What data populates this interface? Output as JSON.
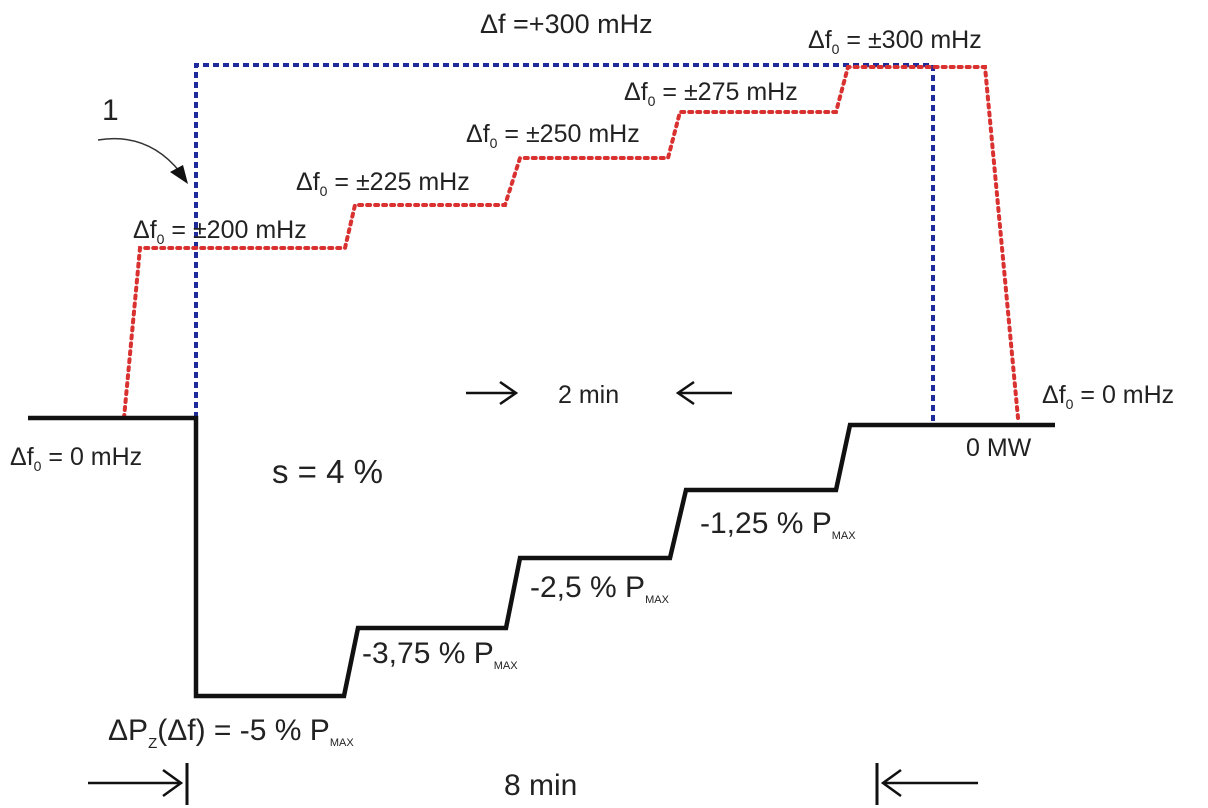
{
  "colors": {
    "power_line": "#111111",
    "frequency_line": "#d93030",
    "deviation_frame": "#1f2b9a",
    "text": "#222222"
  },
  "labels": {
    "top_deviation": "Δf =+300 mHz",
    "marker_number": "1",
    "f0_200": {
      "base": "Δf",
      "sub": "0",
      "rest": " = ±200 mHz"
    },
    "f0_225": {
      "base": "Δf",
      "sub": "0",
      "rest": " = ±225 mHz"
    },
    "f0_250": {
      "base": "Δf",
      "sub": "0",
      "rest": " = ±250 mHz"
    },
    "f0_275": {
      "base": "Δf",
      "sub": "0",
      "rest": " = ±275 mHz"
    },
    "f0_300": {
      "base": "Δf",
      "sub": "0",
      "rest": " = ±300 mHz"
    },
    "f0_zero_left": {
      "base": "Δf",
      "sub": "0",
      "rest": " = 0 mHz"
    },
    "f0_zero_right": {
      "base": "Δf",
      "sub": "0",
      "rest": " = 0 mHz"
    },
    "step_duration": "2 min",
    "total_duration": "8 min",
    "droop": "s = 4 %",
    "zero_power": "0 MW",
    "p_375": {
      "main": "-3,75 % P",
      "sub": "MAX"
    },
    "p_25": {
      "main": "-2,5 % P",
      "sub": "MAX"
    },
    "p_125": {
      "main": "-1,25 % P",
      "sub": "MAX"
    },
    "p_5": {
      "pre": "ΔP",
      "sub1": "Z",
      "mid": "(Δf) = -5 % P",
      "sub2": "MAX"
    }
  },
  "arrows": {
    "step_left": "right-arrow",
    "step_right": "left-arrow",
    "total_left": "right-arrow-to-bar",
    "total_right": "left-arrow-from-bar",
    "marker_pointer": "curved-pointer-arrow"
  }
}
